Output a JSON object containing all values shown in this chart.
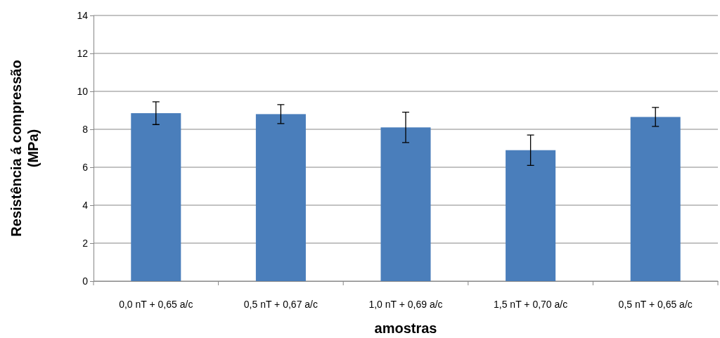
{
  "chart_data": {
    "type": "bar",
    "xlabel": "amostras",
    "ylabel": "Resistência á compressão\n(MPa)",
    "categories": [
      "0,0 nT + 0,65 a/c",
      "0,5 nT + 0,67 a/c",
      "1,0 nT + 0,69 a/c",
      "1,5 nT + 0,70 a/c",
      "0,5 nT + 0,65 a/c"
    ],
    "values": [
      8.85,
      8.8,
      8.1,
      6.9,
      8.65
    ],
    "errors": [
      0.6,
      0.5,
      0.8,
      0.8,
      0.5
    ],
    "color": "#4a7ebb",
    "ylim": [
      0,
      14
    ],
    "yticks": [
      0,
      2,
      4,
      6,
      8,
      10,
      12,
      14
    ],
    "grid": "y"
  }
}
